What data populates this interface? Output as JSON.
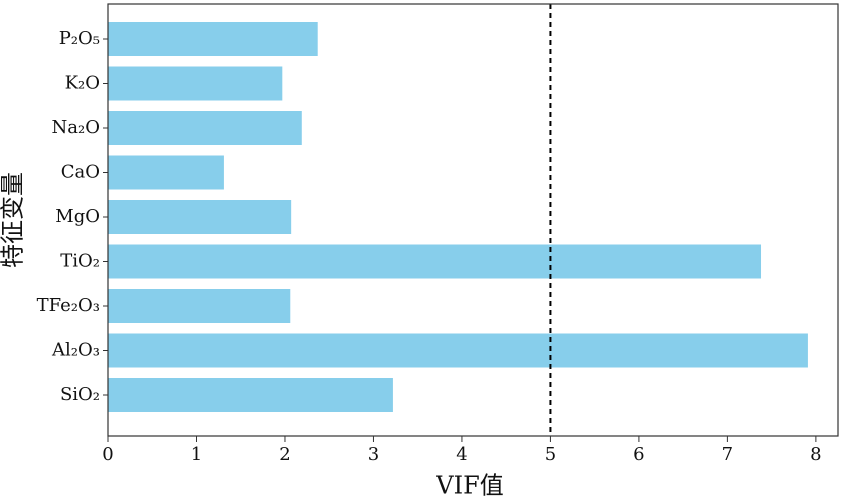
{
  "chart_data": {
    "type": "barh",
    "categories": [
      "P₂O₅",
      "K₂O",
      "Na₂O",
      "CaO",
      "MgO",
      "TiO₂",
      "TFe₂O₃",
      "Al₂O₃",
      "SiO₂"
    ],
    "values": [
      2.37,
      1.97,
      2.19,
      1.31,
      2.07,
      7.38,
      2.06,
      7.91,
      3.22
    ],
    "color": "#87ceeb",
    "xlabel": "VIF值",
    "ylabel": "特征变量",
    "xlim": [
      0,
      8.25
    ],
    "xticks": [
      0,
      1,
      2,
      3,
      4,
      5,
      6,
      7,
      8
    ],
    "threshold": 5
  }
}
